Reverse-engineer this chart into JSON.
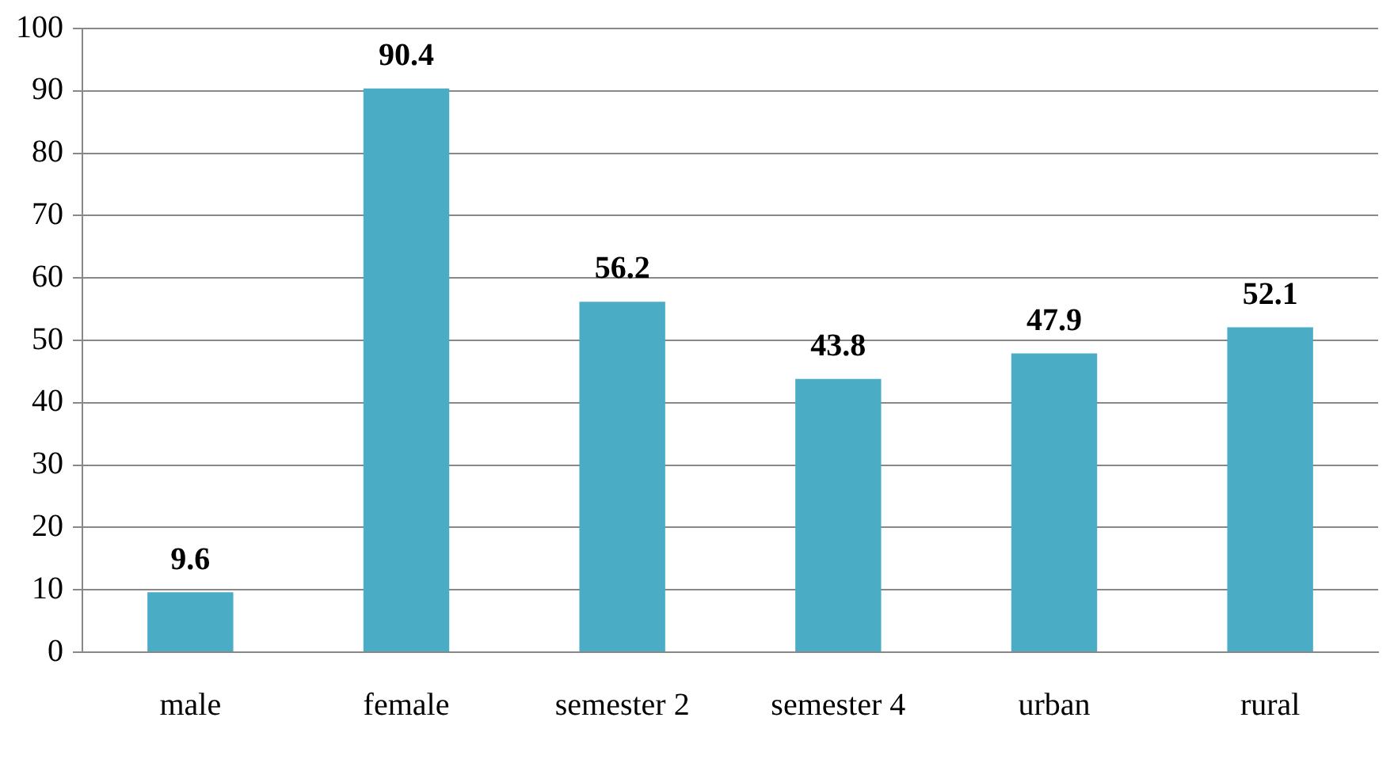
{
  "chart_data": {
    "type": "bar",
    "categories": [
      "male",
      "female",
      "semester 2",
      "semester 4",
      "urban",
      "rural"
    ],
    "values": [
      9.6,
      90.4,
      56.2,
      43.8,
      47.9,
      52.1
    ],
    "color": "#4bacc6",
    "ylim": [
      0,
      100
    ],
    "yticks": [
      0,
      10,
      20,
      30,
      40,
      50,
      60,
      70,
      80,
      90,
      100
    ],
    "grid": "y",
    "data_labels": true
  }
}
